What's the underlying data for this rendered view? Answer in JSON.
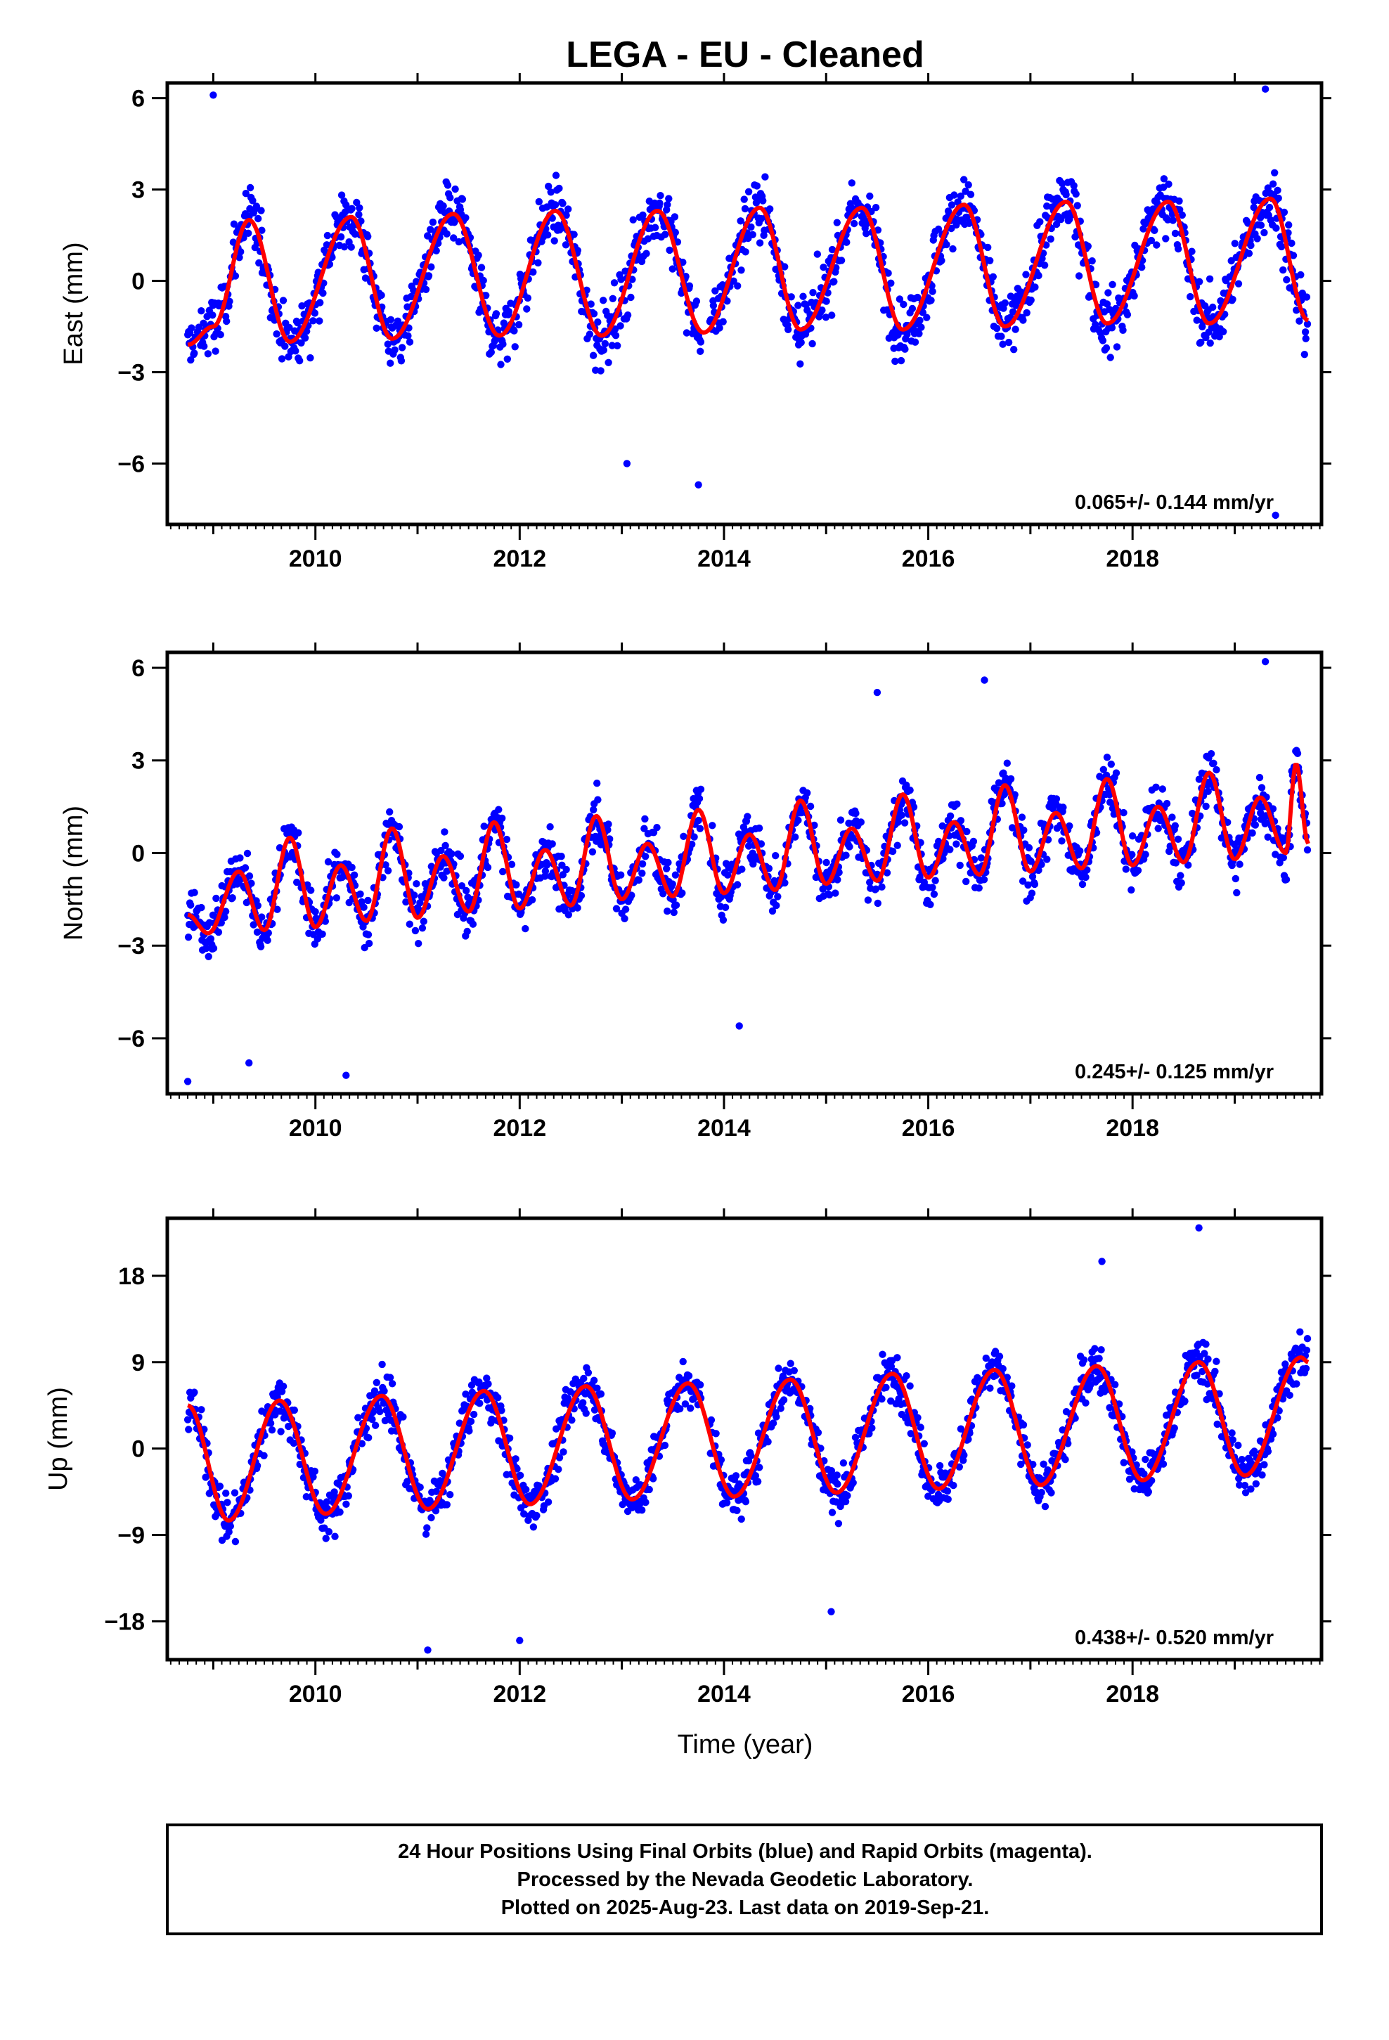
{
  "title": "LEGA  - EU - Cleaned",
  "xlabel": "Time (year)",
  "caption": {
    "lines": [
      "24 Hour Positions Using Final Orbits (blue) and Rapid Orbits (magenta).",
      "Processed by the Nevada Geodetic Laboratory.",
      "Plotted on 2025-Aug-23. Last data on 2019-Sep-21."
    ]
  },
  "colors": {
    "data_points": "#0000ff",
    "model_curve": "#ff0000",
    "frame": "#000000"
  },
  "chart_data": [
    {
      "type": "scatter",
      "ylabel": "East (mm)",
      "rate_text": "0.065+/- 0.144 mm/yr",
      "xlim": [
        2008.55,
        2019.85
      ],
      "ylim": [
        -8,
        6.5
      ],
      "x_ticks": [
        2010,
        2012,
        2014,
        2016,
        2018
      ],
      "x_minor_ticks": [
        2009,
        2011,
        2013,
        2015,
        2017,
        2019
      ],
      "y_ticks": [
        -6,
        -3,
        0,
        3,
        6
      ],
      "y_tick_labels": [
        "−6",
        "−3",
        "0",
        "3",
        "6"
      ],
      "model": {
        "phase": "sine",
        "x_start": 2008.75,
        "x_end": 2019.72,
        "points": [
          [
            2008.75,
            -2.1
          ],
          [
            2009.0,
            -1.5
          ],
          [
            2009.35,
            2.0
          ],
          [
            2009.75,
            -2.0
          ],
          [
            2010.35,
            2.1
          ],
          [
            2010.75,
            -1.9
          ],
          [
            2011.35,
            2.2
          ],
          [
            2011.8,
            -1.8
          ],
          [
            2012.35,
            2.3
          ],
          [
            2012.8,
            -1.8
          ],
          [
            2013.35,
            2.3
          ],
          [
            2013.8,
            -1.7
          ],
          [
            2014.35,
            2.4
          ],
          [
            2014.75,
            -1.6
          ],
          [
            2015.35,
            2.4
          ],
          [
            2015.75,
            -1.6
          ],
          [
            2016.35,
            2.5
          ],
          [
            2016.75,
            -1.5
          ],
          [
            2017.35,
            2.6
          ],
          [
            2017.75,
            -1.4
          ],
          [
            2018.35,
            2.6
          ],
          [
            2018.75,
            -1.4
          ],
          [
            2019.35,
            2.7
          ],
          [
            2019.72,
            -1.3
          ]
        ]
      },
      "scatter_spread": 1.3,
      "outliers": [
        [
          2009.0,
          6.1
        ],
        [
          2013.05,
          -6.0
        ],
        [
          2013.75,
          -6.7
        ],
        [
          2019.3,
          6.3
        ],
        [
          2019.4,
          -7.7
        ]
      ],
      "series": [
        {
          "name": "",
          "color": "#0000ff",
          "marker": "dot"
        },
        {
          "name": "",
          "color": "#ff0000",
          "marker": "line"
        }
      ]
    },
    {
      "type": "scatter",
      "ylabel": "North (mm)",
      "rate_text": "0.245+/- 0.125 mm/yr",
      "xlim": [
        2008.55,
        2019.85
      ],
      "ylim": [
        -7.8,
        6.5
      ],
      "x_ticks": [
        2010,
        2012,
        2014,
        2016,
        2018
      ],
      "x_minor_ticks": [
        2009,
        2011,
        2013,
        2015,
        2017,
        2019
      ],
      "y_ticks": [
        -6,
        -3,
        0,
        3,
        6
      ],
      "y_tick_labels": [
        "−6",
        "−3",
        "0",
        "3",
        "6"
      ],
      "model": {
        "points": [
          [
            2008.75,
            -2.0
          ],
          [
            2008.95,
            -2.6
          ],
          [
            2009.25,
            -0.6
          ],
          [
            2009.5,
            -2.5
          ],
          [
            2009.75,
            0.5
          ],
          [
            2010.0,
            -2.4
          ],
          [
            2010.25,
            -0.4
          ],
          [
            2010.5,
            -2.2
          ],
          [
            2010.75,
            0.8
          ],
          [
            2011.0,
            -2.1
          ],
          [
            2011.25,
            -0.1
          ],
          [
            2011.5,
            -1.9
          ],
          [
            2011.75,
            1.0
          ],
          [
            2012.0,
            -1.8
          ],
          [
            2012.25,
            0.1
          ],
          [
            2012.5,
            -1.7
          ],
          [
            2012.75,
            1.2
          ],
          [
            2013.0,
            -1.5
          ],
          [
            2013.25,
            0.3
          ],
          [
            2013.5,
            -1.4
          ],
          [
            2013.75,
            1.4
          ],
          [
            2014.0,
            -1.3
          ],
          [
            2014.25,
            0.6
          ],
          [
            2014.5,
            -1.2
          ],
          [
            2014.75,
            1.7
          ],
          [
            2015.0,
            -1.0
          ],
          [
            2015.25,
            0.8
          ],
          [
            2015.5,
            -0.9
          ],
          [
            2015.75,
            1.9
          ],
          [
            2016.0,
            -0.8
          ],
          [
            2016.25,
            1.0
          ],
          [
            2016.5,
            -0.7
          ],
          [
            2016.75,
            2.2
          ],
          [
            2017.0,
            -0.6
          ],
          [
            2017.25,
            1.3
          ],
          [
            2017.5,
            -0.5
          ],
          [
            2017.75,
            2.4
          ],
          [
            2018.0,
            -0.4
          ],
          [
            2018.25,
            1.5
          ],
          [
            2018.5,
            -0.3
          ],
          [
            2018.75,
            2.6
          ],
          [
            2019.0,
            -0.2
          ],
          [
            2019.25,
            1.8
          ],
          [
            2019.5,
            0.0
          ],
          [
            2019.6,
            2.9
          ],
          [
            2019.72,
            0.3
          ]
        ]
      },
      "scatter_spread": 1.1,
      "outliers": [
        [
          2008.75,
          -7.4
        ],
        [
          2009.35,
          -6.8
        ],
        [
          2010.3,
          -7.2
        ],
        [
          2014.15,
          -5.6
        ],
        [
          2015.5,
          5.2
        ],
        [
          2016.55,
          5.6
        ],
        [
          2019.3,
          6.2
        ]
      ],
      "series": [
        {
          "name": "",
          "color": "#0000ff",
          "marker": "dot"
        },
        {
          "name": "",
          "color": "#ff0000",
          "marker": "line"
        }
      ]
    },
    {
      "type": "scatter",
      "ylabel": "Up (mm)",
      "rate_text": "0.438+/- 0.520 mm/yr",
      "xlim": [
        2008.55,
        2019.85
      ],
      "ylim": [
        -22,
        24
      ],
      "x_ticks": [
        2010,
        2012,
        2014,
        2016,
        2018
      ],
      "x_minor_ticks": [
        2009,
        2011,
        2013,
        2015,
        2017,
        2019
      ],
      "y_ticks": [
        -18,
        -9,
        0,
        9,
        18
      ],
      "y_tick_labels": [
        "−18",
        "−9",
        "0",
        "9",
        "18"
      ],
      "model": {
        "points": [
          [
            2008.75,
            4.5
          ],
          [
            2009.15,
            -7.5
          ],
          [
            2009.65,
            5.0
          ],
          [
            2010.1,
            -6.8
          ],
          [
            2010.65,
            5.5
          ],
          [
            2011.1,
            -6.3
          ],
          [
            2011.65,
            6.0
          ],
          [
            2012.1,
            -5.8
          ],
          [
            2012.65,
            6.5
          ],
          [
            2013.1,
            -5.3
          ],
          [
            2013.65,
            6.8
          ],
          [
            2014.1,
            -5.0
          ],
          [
            2014.65,
            7.2
          ],
          [
            2015.1,
            -4.6
          ],
          [
            2015.65,
            7.8
          ],
          [
            2016.1,
            -4.2
          ],
          [
            2016.65,
            8.2
          ],
          [
            2017.1,
            -3.8
          ],
          [
            2017.65,
            8.6
          ],
          [
            2018.1,
            -3.3
          ],
          [
            2018.65,
            9.0
          ],
          [
            2019.1,
            -2.8
          ],
          [
            2019.65,
            9.5
          ],
          [
            2019.72,
            9.0
          ]
        ]
      },
      "scatter_spread": 3.2,
      "outliers": [
        [
          2011.1,
          -21.0
        ],
        [
          2012.0,
          -20.0
        ],
        [
          2017.7,
          19.5
        ],
        [
          2018.65,
          23.0
        ],
        [
          2015.05,
          -17.0
        ]
      ],
      "series": [
        {
          "name": "",
          "color": "#0000ff",
          "marker": "dot"
        },
        {
          "name": "",
          "color": "#ff0000",
          "marker": "line"
        }
      ]
    }
  ]
}
